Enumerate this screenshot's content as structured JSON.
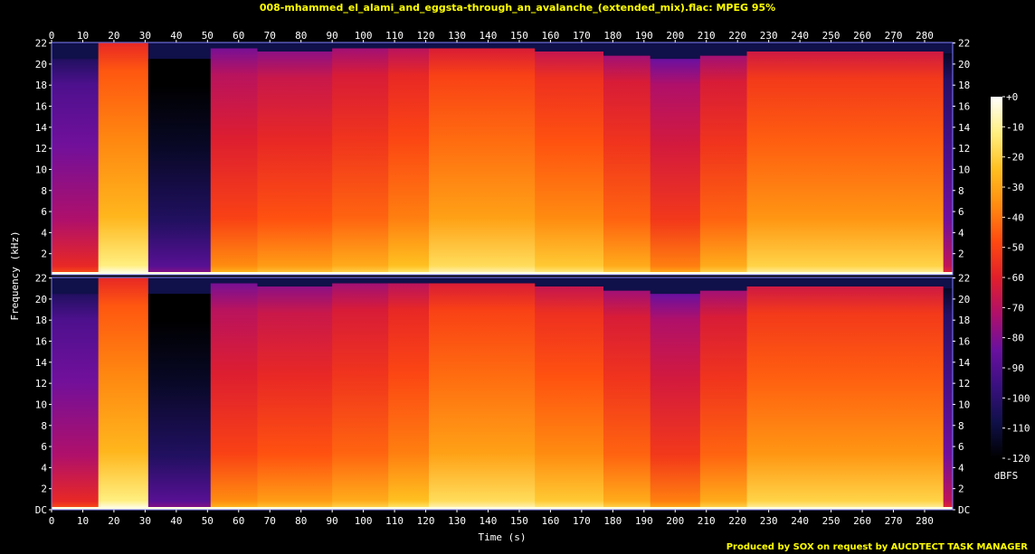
{
  "title": "008-mhammed_el_alami_and_eggsta-through_an_avalanche_(extended_mix).flac: MPEG 95%",
  "footer": "Produced by SOX on request by AUCDTECT TASK MANAGER",
  "colors": {
    "background": "#000000",
    "title": "#ffff00",
    "footer": "#ffff00",
    "axis_text": "#ffffff",
    "palette": [
      "#000000",
      "#10104a",
      "#3a1080",
      "#6a10a0",
      "#b0106a",
      "#e21f2a",
      "#ff4a10",
      "#ff8c10",
      "#ffc020",
      "#ffef80",
      "#ffffff"
    ]
  },
  "chart_data": {
    "type": "heatmap",
    "title": "008-mhammed_el_alami_and_eggsta-through_an_avalanche_(extended_mix).flac: MPEG 95%",
    "xlabel": "Time (s)",
    "ylabel": "Frequency (kHz)",
    "xlim": [
      0,
      289
    ],
    "ylim": [
      0,
      22.05
    ],
    "x_ticks": [
      "0",
      "10",
      "20",
      "30",
      "40",
      "50",
      "60",
      "70",
      "80",
      "90",
      "100",
      "110",
      "120",
      "130",
      "140",
      "150",
      "160",
      "170",
      "180",
      "190",
      "200",
      "210",
      "220",
      "230",
      "240",
      "250",
      "260",
      "270",
      "280"
    ],
    "y_ticks_top": [
      "2",
      "4",
      "6",
      "8",
      "10",
      "12",
      "14",
      "16",
      "18",
      "20",
      "22"
    ],
    "y_ticks_bottom": [
      "DC",
      "2",
      "4",
      "6",
      "8",
      "10",
      "12",
      "14",
      "16",
      "18",
      "20",
      "22"
    ],
    "channels": [
      "top",
      "bottom"
    ],
    "colorbar": {
      "label": "dBFS",
      "range": [
        -120,
        0
      ],
      "ticks": [
        "+0",
        "-10",
        "-20",
        "-30",
        "-40",
        "-50",
        "-60",
        "-70",
        "-80",
        "-90",
        "-100",
        "-110",
        "-120"
      ]
    },
    "segments": [
      {
        "t0": 0,
        "t1": 15,
        "level": 0.34,
        "cutoff_khz": 20.5
      },
      {
        "t0": 15,
        "t1": 31,
        "level": 0.72,
        "cutoff_khz": 22.0
      },
      {
        "t0": 31,
        "t1": 51,
        "level": 0.08,
        "cutoff_khz": 20.5
      },
      {
        "t0": 51,
        "t1": 66,
        "level": 0.52,
        "cutoff_khz": 21.5
      },
      {
        "t0": 66,
        "t1": 90,
        "level": 0.55,
        "cutoff_khz": 21.2
      },
      {
        "t0": 90,
        "t1": 108,
        "level": 0.58,
        "cutoff_khz": 21.5
      },
      {
        "t0": 108,
        "t1": 121,
        "level": 0.62,
        "cutoff_khz": 21.5
      },
      {
        "t0": 121,
        "t1": 155,
        "level": 0.68,
        "cutoff_khz": 21.5
      },
      {
        "t0": 155,
        "t1": 177,
        "level": 0.64,
        "cutoff_khz": 21.2
      },
      {
        "t0": 177,
        "t1": 192,
        "level": 0.58,
        "cutoff_khz": 20.8
      },
      {
        "t0": 192,
        "t1": 208,
        "level": 0.5,
        "cutoff_khz": 20.5
      },
      {
        "t0": 208,
        "t1": 223,
        "level": 0.58,
        "cutoff_khz": 20.8
      },
      {
        "t0": 223,
        "t1": 256,
        "level": 0.66,
        "cutoff_khz": 21.2
      },
      {
        "t0": 256,
        "t1": 286,
        "level": 0.66,
        "cutoff_khz": 21.2
      },
      {
        "t0": 286,
        "t1": 289,
        "level": 0.25,
        "cutoff_khz": 21.0
      }
    ]
  }
}
